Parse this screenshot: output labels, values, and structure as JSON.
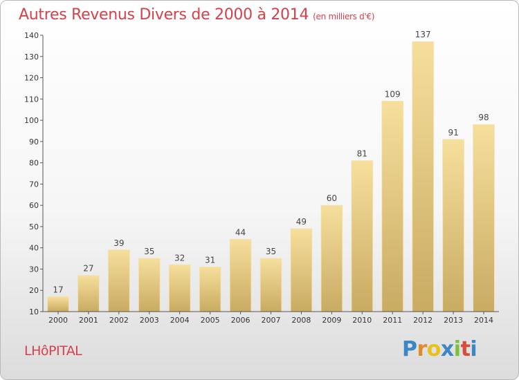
{
  "chart_data": {
    "type": "bar",
    "title": "Autres Revenus Divers de 2000 à 2014",
    "subtitle": "(en milliers d'€)",
    "categories": [
      "2000",
      "2001",
      "2002",
      "2003",
      "2004",
      "2005",
      "2006",
      "2007",
      "2008",
      "2009",
      "2010",
      "2011",
      "2012",
      "2013",
      "2014"
    ],
    "values": [
      17,
      27,
      39,
      35,
      32,
      31,
      44,
      35,
      49,
      60,
      81,
      109,
      137,
      91,
      98
    ],
    "ylim": [
      10,
      140
    ],
    "yticks": [
      10,
      20,
      30,
      40,
      50,
      60,
      70,
      80,
      90,
      100,
      110,
      120,
      130,
      140
    ],
    "xlabel": "",
    "ylabel": "",
    "grid": false,
    "bar_color": "#e8cf86"
  },
  "place_name": "LHôPITAL",
  "logo": {
    "letters": [
      "P",
      "r",
      "o",
      "x",
      "i",
      "t",
      "i"
    ],
    "colors": [
      "#3a86c8",
      "#e08a2a",
      "#e8c21c",
      "#3a86c8",
      "#7bbf3a",
      "#d94b3a",
      "#3a86c8"
    ]
  }
}
